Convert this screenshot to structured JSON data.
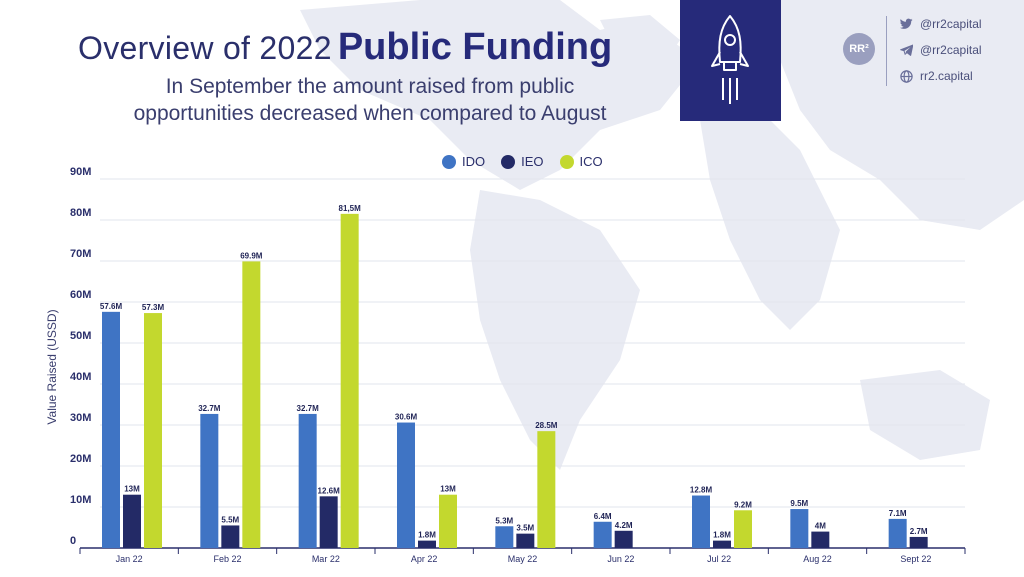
{
  "header": {
    "title_light": "Overview of 2022",
    "title_bold": "Public Funding",
    "subtitle": "In September the amount raised from public opportunities decreased when compared to August"
  },
  "brand": {
    "logo": "RR²",
    "socials": [
      {
        "icon": "twitter-icon",
        "text": "@rr2capital"
      },
      {
        "icon": "telegram-icon",
        "text": "@rr2capital"
      },
      {
        "icon": "globe-icon",
        "text": "rr2.capital"
      }
    ]
  },
  "colors": {
    "IDO": "#3f74c4",
    "IEO": "#232a66",
    "ICO": "#c3d82e",
    "navy": "#262a7a"
  },
  "chart_data": {
    "type": "bar",
    "title": "Overview of 2022 Public Funding",
    "ylabel": "Value Raised (USSD)",
    "xlabel": "",
    "ylim": [
      0,
      90
    ],
    "yticks": [
      "0",
      "10M",
      "20M",
      "30M",
      "40M",
      "50M",
      "60M",
      "70M",
      "80M",
      "90M"
    ],
    "legend_position": "top-center",
    "categories": [
      "Jan 22",
      "Feb 22",
      "Mar 22",
      "Apr 22",
      "May 22",
      "Jun 22",
      "Jul 22",
      "Aug 22",
      "Sept 22"
    ],
    "series": [
      {
        "name": "IDO",
        "values": [
          57.6,
          32.7,
          32.7,
          30.6,
          5.3,
          6.4,
          12.8,
          9.5,
          7.1
        ],
        "labels": [
          "57.6M",
          "32.7M",
          "32.7M",
          "30.6M",
          "5.3M",
          "6.4M",
          "12.8M",
          "9.5M",
          "7.1M"
        ]
      },
      {
        "name": "IEO",
        "values": [
          13,
          5.5,
          12.6,
          1.8,
          3.5,
          4.2,
          1.8,
          4,
          2.7
        ],
        "labels": [
          "13M",
          "5.5M",
          "12.6M",
          "1.8M",
          "3.5M",
          "4.2M",
          "1.8M",
          "4M",
          "2.7M"
        ]
      },
      {
        "name": "ICO",
        "values": [
          57.3,
          69.9,
          81.5,
          13,
          28.5,
          null,
          9.2,
          null,
          null
        ],
        "labels": [
          "57.3M",
          "69.9M",
          "81,5M",
          "13M",
          "28.5M",
          null,
          "9.2M",
          null,
          null
        ]
      }
    ]
  }
}
